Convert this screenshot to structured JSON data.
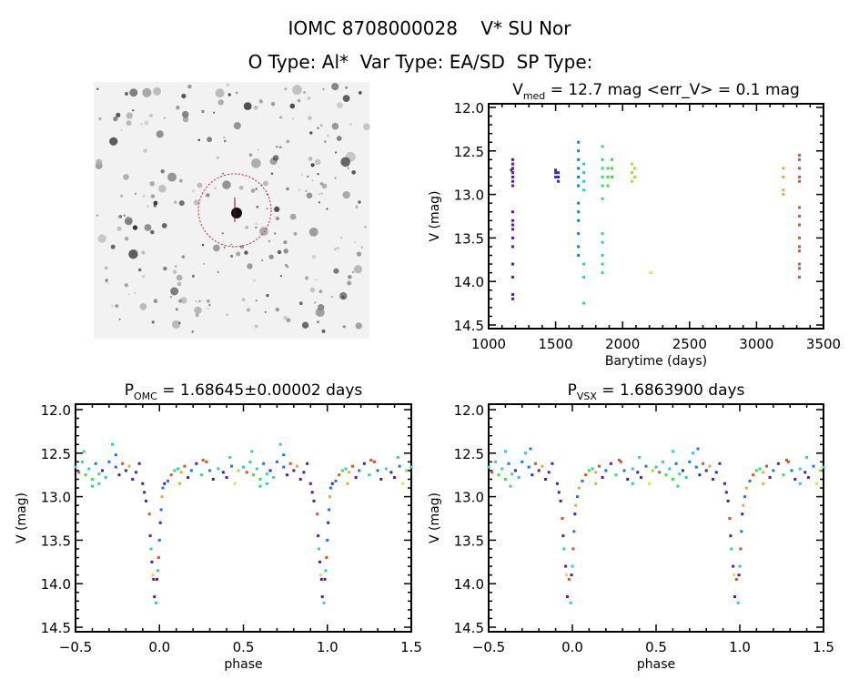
{
  "header": {
    "title": "IOMC 8708000028    V* SU Nor",
    "subtitle": "O Type: Al*  Var Type: EA/SD  SP Type:"
  },
  "palette": [
    "#5a1a9a",
    "#2a2ad0",
    "#1a7ae0",
    "#30c8e0",
    "#30d890",
    "#40e040",
    "#a0e030",
    "#e0e040",
    "#e0b030",
    "#e05020"
  ],
  "image_panel": {
    "type": "star-field-image",
    "circle_color": "#cc2020"
  },
  "chart_data": [
    {
      "type": "scatter",
      "title": {
        "main": "V",
        "sub": "med",
        "rest": " = 12.7 mag <err_V> = 0.1 mag"
      },
      "xlabel": "Barytime (days)",
      "ylabel": "V (mag)",
      "xlim": [
        1000,
        3500
      ],
      "ylim": [
        14.5,
        12.0
      ],
      "y_inverted": true,
      "xticks": [
        "1000",
        "1500",
        "2000",
        "2500",
        "3000",
        "3500"
      ],
      "yticks": [
        "12.0",
        "12.5",
        "13.0",
        "13.5",
        "14.0",
        "14.5"
      ],
      "segments": [
        {
          "t": 1170,
          "c": 0,
          "mags": [
            12.72
          ]
        },
        {
          "t": 1180,
          "c": 0,
          "mags": [
            12.6,
            12.65,
            12.7,
            12.75,
            12.8,
            12.85,
            12.9,
            13.2,
            13.3,
            13.35,
            13.4,
            13.5,
            13.6,
            13.8,
            13.95,
            14.15,
            14.2
          ]
        },
        {
          "t": 1500,
          "c": 1,
          "mags": [
            12.72,
            12.75,
            12.8
          ]
        },
        {
          "t": 1520,
          "c": 1,
          "mags": [
            12.75,
            12.8,
            12.85
          ]
        },
        {
          "t": 1670,
          "c": 2,
          "mags": [
            12.4,
            12.5,
            12.6,
            12.7,
            12.8,
            12.9,
            13.1,
            13.2,
            13.3,
            13.45,
            13.6,
            13.7
          ]
        },
        {
          "t": 1710,
          "c": 3,
          "mags": [
            12.65,
            12.75,
            12.85,
            12.95,
            13.8,
            13.95,
            14.25
          ]
        },
        {
          "t": 1850,
          "c": 4,
          "mags": [
            12.45,
            12.6,
            12.7,
            12.8,
            12.9,
            13.05,
            13.45,
            13.55,
            13.7,
            13.8,
            13.9
          ]
        },
        {
          "t": 1890,
          "c": 5,
          "mags": [
            12.7,
            12.8,
            12.9
          ]
        },
        {
          "t": 1920,
          "c": 5,
          "mags": [
            12.6,
            12.7,
            12.8
          ]
        },
        {
          "t": 2070,
          "c": 6,
          "mags": [
            12.65,
            12.75,
            12.85
          ]
        },
        {
          "t": 2090,
          "c": 6,
          "mags": [
            12.7,
            12.8
          ]
        },
        {
          "t": 2210,
          "c": 7,
          "mags": [
            13.9
          ]
        },
        {
          "t": 3200,
          "c": 8,
          "mags": [
            12.7,
            12.8,
            12.95,
            13.0
          ]
        },
        {
          "t": 3320,
          "c": 9,
          "mags": [
            12.55,
            12.6,
            12.7,
            12.8,
            12.85,
            13.15,
            13.25,
            13.35,
            13.5,
            13.6,
            13.65,
            13.8,
            13.85,
            13.95
          ]
        }
      ]
    },
    {
      "type": "scatter",
      "title": {
        "main": "P",
        "sub": "OMC",
        "rest": " = 1.68645±0.00002 days"
      },
      "xlabel": "phase",
      "ylabel": "V (mag)",
      "xlim": [
        -0.5,
        1.5
      ],
      "ylim": [
        14.5,
        12.0
      ],
      "y_inverted": true,
      "xticks": [
        "-0.5",
        "0.0",
        "0.5",
        "1.0",
        "1.5"
      ],
      "yticks": [
        "12.0",
        "12.5",
        "13.0",
        "13.5",
        "14.0",
        "14.5"
      ],
      "points": [
        [
          0.05,
          12.82,
          2
        ],
        [
          0.07,
          12.75,
          9
        ],
        [
          0.09,
          12.7,
          5
        ],
        [
          0.11,
          12.68,
          3
        ],
        [
          0.13,
          12.72,
          8
        ],
        [
          0.15,
          12.65,
          9
        ],
        [
          0.17,
          12.78,
          0
        ],
        [
          0.19,
          12.7,
          2
        ],
        [
          0.22,
          12.62,
          1
        ],
        [
          0.25,
          12.75,
          4
        ],
        [
          0.28,
          12.6,
          9
        ],
        [
          0.3,
          12.7,
          2
        ],
        [
          0.32,
          12.8,
          0
        ],
        [
          0.35,
          12.68,
          3
        ],
        [
          0.38,
          12.72,
          1
        ],
        [
          0.4,
          12.78,
          0
        ],
        [
          0.43,
          12.65,
          2
        ],
        [
          0.45,
          12.85,
          7
        ],
        [
          0.47,
          12.7,
          6
        ],
        [
          0.5,
          12.66,
          3
        ],
        [
          0.52,
          12.72,
          9
        ],
        [
          0.54,
          12.6,
          4
        ],
        [
          0.56,
          12.75,
          5
        ],
        [
          0.58,
          12.68,
          3
        ],
        [
          0.6,
          12.8,
          5
        ],
        [
          0.62,
          12.62,
          2
        ],
        [
          0.64,
          12.74,
          4
        ],
        [
          0.66,
          12.7,
          1
        ],
        [
          0.68,
          12.78,
          3
        ],
        [
          0.7,
          12.6,
          2
        ],
        [
          0.72,
          12.4,
          3
        ],
        [
          0.74,
          12.66,
          2
        ],
        [
          0.76,
          12.75,
          1
        ],
        [
          0.78,
          12.62,
          9
        ],
        [
          0.8,
          12.7,
          0
        ],
        [
          0.82,
          12.65,
          8
        ],
        [
          0.84,
          12.8,
          0
        ],
        [
          0.86,
          12.72,
          1
        ],
        [
          0.88,
          12.62,
          0
        ],
        [
          0.55,
          12.48,
          3
        ],
        [
          0.6,
          12.88,
          4
        ],
        [
          0.64,
          12.85,
          3
        ],
        [
          0.26,
          12.58,
          9
        ],
        [
          0.12,
          12.85,
          8
        ],
        [
          0.42,
          12.55,
          3
        ],
        [
          0.74,
          12.52,
          2
        ],
        [
          0.9,
          12.85,
          0
        ],
        [
          0.91,
          12.95,
          0
        ],
        [
          0.92,
          13.05,
          0
        ],
        [
          0.94,
          13.2,
          9
        ],
        [
          0.945,
          13.45,
          0
        ],
        [
          0.95,
          13.6,
          4
        ],
        [
          0.955,
          13.75,
          0
        ],
        [
          0.96,
          13.9,
          7
        ],
        [
          0.965,
          13.95,
          0
        ],
        [
          0.97,
          14.15,
          0
        ],
        [
          0.98,
          14.22,
          3
        ],
        [
          0.985,
          13.95,
          0
        ],
        [
          0.99,
          13.85,
          3
        ],
        [
          0.995,
          13.7,
          9
        ],
        [
          1.0,
          13.5,
          2
        ],
        [
          0.005,
          13.3,
          1
        ],
        [
          0.01,
          13.15,
          2
        ],
        [
          0.015,
          13.0,
          8
        ],
        [
          0.02,
          12.9,
          2
        ],
        [
          0.03,
          12.85,
          1
        ]
      ]
    },
    {
      "type": "scatter",
      "title": {
        "main": "P",
        "sub": "VSX",
        "rest": " = 1.6863900 days"
      },
      "xlabel": "phase",
      "ylabel": "V (mag)",
      "xlim": [
        -0.5,
        1.5
      ],
      "ylim": [
        14.5,
        12.0
      ],
      "y_inverted": true,
      "xticks": [
        "-0.5",
        "0.0",
        "0.5",
        "1.0",
        "1.5"
      ],
      "yticks": [
        "12.0",
        "12.5",
        "13.0",
        "13.5",
        "14.0",
        "14.5"
      ],
      "points": [
        [
          0.06,
          12.82,
          2
        ],
        [
          0.08,
          12.75,
          9
        ],
        [
          0.1,
          12.7,
          5
        ],
        [
          0.12,
          12.68,
          3
        ],
        [
          0.14,
          12.72,
          8
        ],
        [
          0.16,
          12.65,
          9
        ],
        [
          0.18,
          12.78,
          0
        ],
        [
          0.2,
          12.7,
          2
        ],
        [
          0.23,
          12.62,
          1
        ],
        [
          0.26,
          12.75,
          4
        ],
        [
          0.29,
          12.6,
          9
        ],
        [
          0.31,
          12.7,
          2
        ],
        [
          0.33,
          12.8,
          0
        ],
        [
          0.36,
          12.68,
          3
        ],
        [
          0.39,
          12.72,
          1
        ],
        [
          0.41,
          12.78,
          0
        ],
        [
          0.44,
          12.65,
          2
        ],
        [
          0.46,
          12.85,
          7
        ],
        [
          0.48,
          12.7,
          6
        ],
        [
          0.5,
          12.66,
          3
        ],
        [
          0.52,
          12.72,
          9
        ],
        [
          0.54,
          12.6,
          4
        ],
        [
          0.56,
          12.75,
          5
        ],
        [
          0.58,
          12.68,
          3
        ],
        [
          0.6,
          12.8,
          5
        ],
        [
          0.62,
          12.62,
          2
        ],
        [
          0.64,
          12.74,
          4
        ],
        [
          0.66,
          12.7,
          1
        ],
        [
          0.68,
          12.78,
          3
        ],
        [
          0.7,
          12.6,
          2
        ],
        [
          0.72,
          12.5,
          3
        ],
        [
          0.74,
          12.66,
          2
        ],
        [
          0.76,
          12.75,
          1
        ],
        [
          0.78,
          12.62,
          9
        ],
        [
          0.8,
          12.7,
          0
        ],
        [
          0.82,
          12.65,
          8
        ],
        [
          0.84,
          12.8,
          0
        ],
        [
          0.86,
          12.72,
          1
        ],
        [
          0.88,
          12.62,
          0
        ],
        [
          0.6,
          12.48,
          3
        ],
        [
          0.63,
          12.88,
          4
        ],
        [
          0.36,
          12.85,
          3
        ],
        [
          0.28,
          12.58,
          9
        ],
        [
          0.14,
          12.85,
          8
        ],
        [
          0.4,
          12.55,
          3
        ],
        [
          0.75,
          12.45,
          2
        ],
        [
          0.91,
          12.85,
          0
        ],
        [
          0.92,
          12.95,
          0
        ],
        [
          0.93,
          13.05,
          0
        ],
        [
          0.94,
          13.25,
          9
        ],
        [
          0.945,
          13.45,
          0
        ],
        [
          0.95,
          13.6,
          4
        ],
        [
          0.96,
          13.8,
          0
        ],
        [
          0.965,
          13.9,
          7
        ],
        [
          0.97,
          14.15,
          0
        ],
        [
          0.98,
          13.95,
          9
        ],
        [
          0.99,
          14.22,
          3
        ],
        [
          0.995,
          13.9,
          0
        ],
        [
          1.0,
          13.8,
          3
        ],
        [
          0.005,
          13.6,
          9
        ],
        [
          0.01,
          13.4,
          2
        ],
        [
          0.015,
          13.2,
          1
        ],
        [
          0.02,
          13.1,
          8
        ],
        [
          0.03,
          13.0,
          2
        ],
        [
          0.04,
          12.9,
          8
        ]
      ]
    }
  ]
}
